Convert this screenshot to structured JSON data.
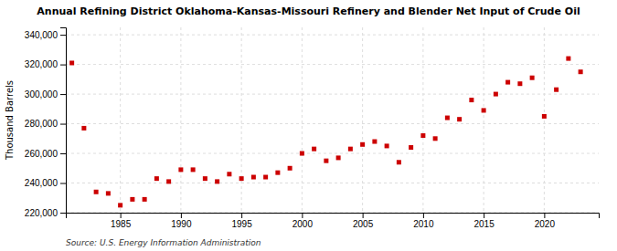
{
  "chart_data": {
    "type": "scatter",
    "title": "Annual Refining District Oklahoma-Kansas-Missouri Refinery and Blender Net Input of Crude Oil",
    "ylabel": "Thousand Barrels",
    "annotations": [
      "Source: U.S. Energy Information Administration"
    ],
    "color": "#cc0000",
    "marker": "square",
    "grid": true,
    "x": [
      1981,
      1982,
      1983,
      1984,
      1985,
      1986,
      1987,
      1988,
      1989,
      1990,
      1991,
      1992,
      1993,
      1994,
      1995,
      1996,
      1997,
      1998,
      1999,
      2000,
      2001,
      2002,
      2003,
      2004,
      2005,
      2006,
      2007,
      2008,
      2009,
      2010,
      2011,
      2012,
      2013,
      2014,
      2015,
      2016,
      2017,
      2018,
      2019,
      2020,
      2021,
      2022,
      2023
    ],
    "values": [
      321000,
      277000,
      234000,
      233000,
      225000,
      229000,
      229000,
      243000,
      241000,
      249000,
      249000,
      243000,
      241000,
      246000,
      243000,
      244000,
      244000,
      247000,
      250000,
      260000,
      263000,
      255000,
      257000,
      263000,
      266000,
      268000,
      265000,
      254000,
      264000,
      272000,
      270000,
      284000,
      283000,
      296000,
      289000,
      300000,
      308000,
      307000,
      311000,
      285000,
      303000,
      324000,
      315000
    ],
    "xlim": [
      1980.5,
      2024.5
    ],
    "xticks": [
      1985,
      1990,
      1995,
      2000,
      2005,
      2010,
      2015,
      2020
    ],
    "ylim": [
      220000,
      345000
    ],
    "yticks": [
      {
        "value": 220000,
        "label": "220,000"
      },
      {
        "value": 240000,
        "label": "240,000"
      },
      {
        "value": 260000,
        "label": "260,000"
      },
      {
        "value": 280000,
        "label": "280,000"
      },
      {
        "value": 300000,
        "label": "300,000"
      },
      {
        "value": 320000,
        "label": "320,000"
      },
      {
        "value": 340000,
        "label": "340,000"
      }
    ]
  }
}
